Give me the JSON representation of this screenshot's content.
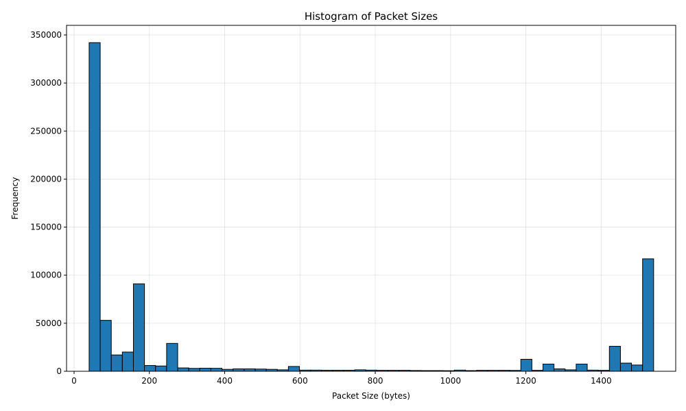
{
  "chart_data": {
    "type": "bar",
    "title": "Histogram of Packet Sizes",
    "xlabel": "Packet Size (bytes)",
    "ylabel": "Frequency",
    "xlim": [
      -20,
      1598
    ],
    "ylim": [
      0,
      360000
    ],
    "xticks": [
      0,
      200,
      400,
      600,
      800,
      1000,
      1200,
      1400
    ],
    "yticks": [
      0,
      50000,
      100000,
      150000,
      200000,
      250000,
      300000,
      350000
    ],
    "grid": true,
    "bar_color": "#1f77b4",
    "edge_color": "#000000",
    "bin_start": 40,
    "bin_width": 29.4,
    "values": [
      342000,
      53000,
      17000,
      20000,
      91000,
      6000,
      5500,
      29000,
      3500,
      3000,
      3200,
      3100,
      2000,
      2500,
      2500,
      2300,
      2000,
      1500,
      5000,
      1200,
      1200,
      1100,
      1100,
      1100,
      1500,
      1200,
      1000,
      1000,
      1000,
      800,
      700,
      700,
      600,
      1200,
      700,
      1000,
      1000,
      1000,
      900,
      12500,
      1000,
      7500,
      2500,
      1500,
      7500,
      1200,
      1000,
      26000,
      8500,
      6500,
      117000
    ]
  }
}
